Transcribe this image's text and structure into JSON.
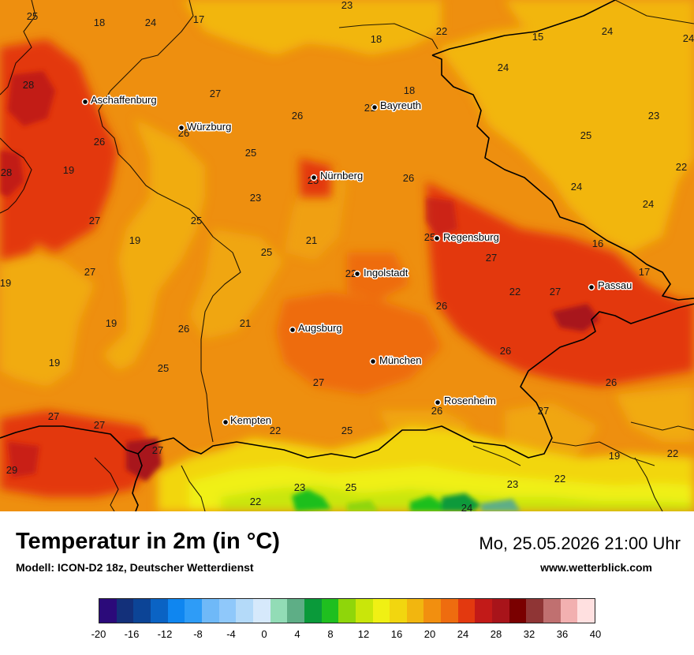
{
  "header": {
    "title": "Temperatur in 2m (in °C)",
    "model": "Modell: ICON-D2 18z, Deutscher Wetterdienst",
    "datetime": "Mo, 25.05.2026 21:00 Uhr",
    "website": "www.wetterblick.com"
  },
  "legend": {
    "ticks": [
      "-20",
      "-16",
      "-12",
      "-8",
      "-4",
      "0",
      "4",
      "8",
      "12",
      "16",
      "20",
      "24",
      "28",
      "32",
      "36",
      "40"
    ],
    "colors": [
      "#2b0a7a",
      "#13307a",
      "#0c4496",
      "#0a63c4",
      "#0f86f0",
      "#2e9cf7",
      "#6fb9f8",
      "#8fc8fa",
      "#b4daf9",
      "#d6e9fb",
      "#92dcb6",
      "#5eae86",
      "#0a9a3a",
      "#1fbf1f",
      "#8fd60a",
      "#c9e60a",
      "#f0f014",
      "#f2d60f",
      "#f2b60f",
      "#f28f0f",
      "#ee6c0f",
      "#e3390f",
      "#c21a18",
      "#a8141a",
      "#7a0000",
      "#8f3535",
      "#c07070",
      "#f2b0b0",
      "#ffe0e0"
    ]
  },
  "map": {
    "background_color": "#ee8f0f",
    "cities": [
      {
        "name": "Aschaffenburg"
      },
      {
        "name": "Würzburg"
      },
      {
        "name": "Bayreuth"
      },
      {
        "name": "Nürnberg"
      },
      {
        "name": "Regensburg"
      },
      {
        "name": "Ingolstadt"
      },
      {
        "name": "Passau"
      },
      {
        "name": "Augsburg"
      },
      {
        "name": "München"
      },
      {
        "name": "Rosenheim"
      },
      {
        "name": "Kempten"
      }
    ],
    "values": [
      "25",
      "18",
      "24",
      "17",
      "23",
      "22",
      "15",
      "24",
      "24",
      "18",
      "28",
      "27",
      "21",
      "26",
      "24",
      "18",
      "26",
      "23",
      "25",
      "26",
      "25",
      "19",
      "28",
      "25",
      "22",
      "26",
      "24",
      "23",
      "27",
      "25",
      "19",
      "21",
      "25",
      "24",
      "16",
      "19",
      "27",
      "25",
      "27",
      "22",
      "27",
      "17",
      "19",
      "26",
      "21",
      "26",
      "19",
      "25",
      "26",
      "22",
      "27",
      "26",
      "27",
      "27",
      "22",
      "25",
      "26",
      "27",
      "29",
      "27",
      "23",
      "25",
      "22",
      "23",
      "22",
      "22",
      "19",
      "24"
    ]
  }
}
